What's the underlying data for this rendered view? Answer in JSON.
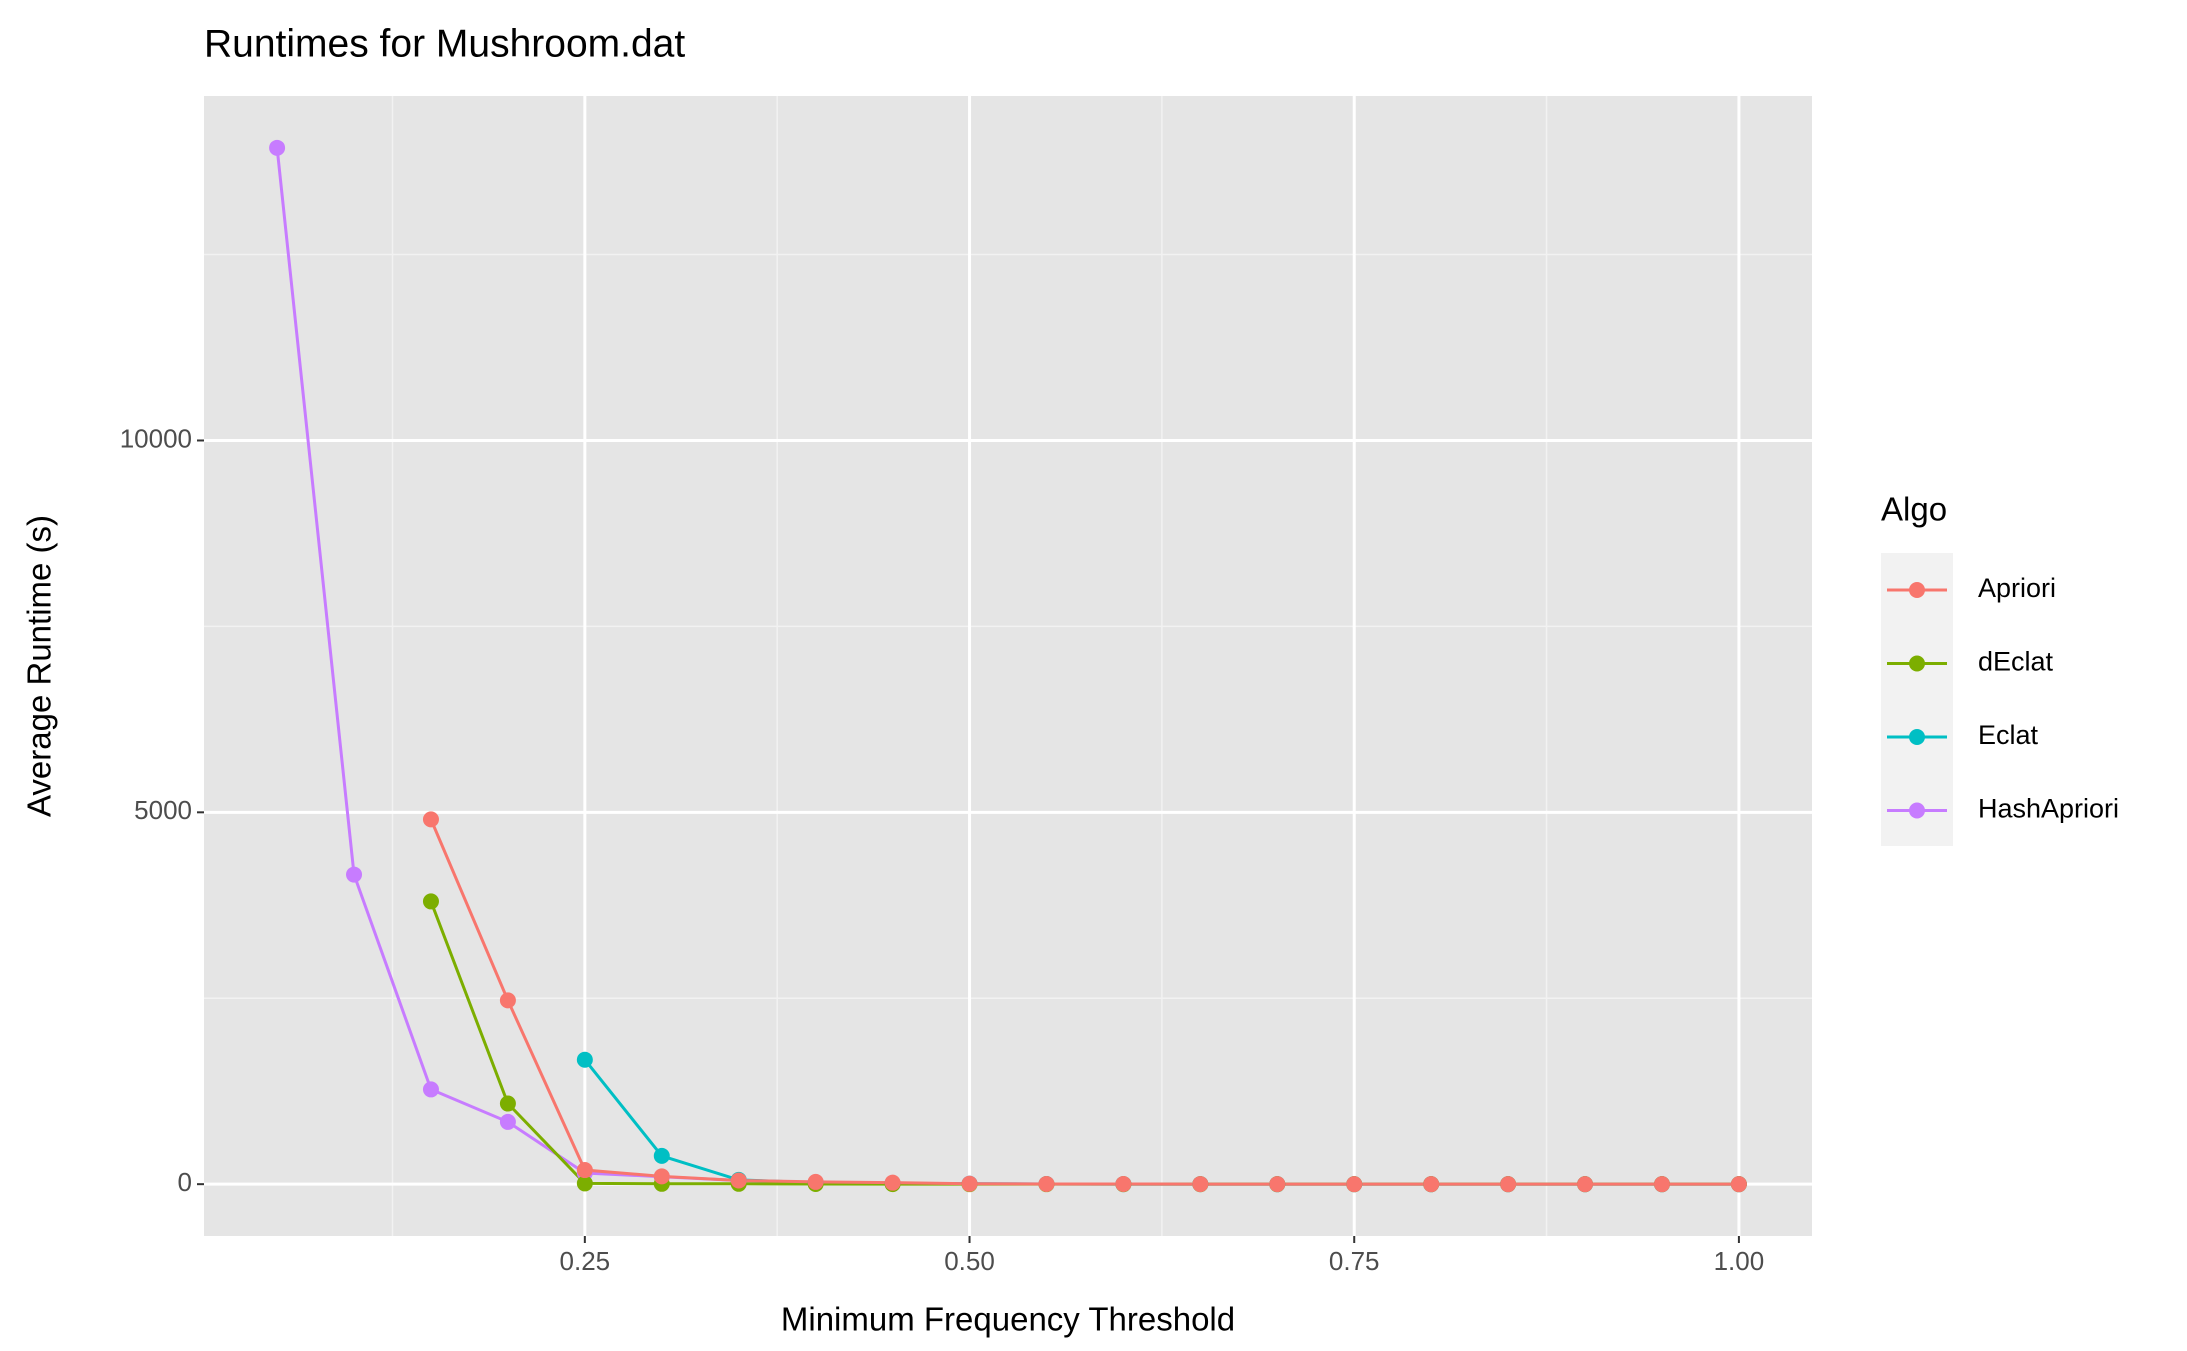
{
  "chart_data": {
    "type": "line",
    "title": "Runtimes for Mushroom.dat",
    "x_label": "Minimum Frequency Threshold",
    "y_label": "Average Runtime (s)",
    "legend_title": "Algo",
    "legend_position": "right",
    "x": [
      0.05,
      0.1,
      0.15,
      0.2,
      0.25,
      0.3,
      0.35,
      0.4,
      0.45,
      0.5,
      0.55,
      0.6,
      0.65,
      0.7,
      0.75,
      0.8,
      0.85,
      0.9,
      0.95,
      1.0
    ],
    "series": [
      {
        "name": "Apriori",
        "color": "#F8766D",
        "values": [
          null,
          null,
          4905,
          2471,
          190,
          105,
          50,
          30,
          20,
          5,
          3,
          2,
          1,
          1,
          0,
          0,
          0,
          0,
          0,
          0
        ]
      },
      {
        "name": "dEclat",
        "color": "#7CAE00",
        "values": [
          null,
          null,
          3802,
          1084,
          10,
          5,
          5,
          2,
          1,
          0,
          0,
          0,
          0,
          0,
          0,
          0,
          0,
          0,
          0,
          0
        ]
      },
      {
        "name": "Eclat",
        "color": "#00BFC4",
        "values": [
          null,
          null,
          null,
          null,
          1673,
          380,
          57,
          20,
          10,
          5,
          2,
          1,
          1,
          0,
          0,
          0,
          0,
          0,
          0,
          0
        ]
      },
      {
        "name": "HashApriori",
        "color": "#C77CFF",
        "values": [
          13935,
          4163,
          1274,
          837,
          150,
          100,
          50,
          20,
          10,
          5,
          2,
          1,
          1,
          0,
          0,
          0,
          0,
          0,
          0,
          0
        ]
      }
    ],
    "xlim": [
      0.0025,
      1.0475
    ],
    "xticks": [
      0.25,
      {
        "value": 0.5,
        "label": "0.50"
      },
      0.75,
      {
        "value": 1.0,
        "label": "1.00"
      }
    ],
    "xminor": [
      0.125,
      0.375,
      0.625,
      0.875
    ],
    "ylim": [
      -697,
      14632
    ],
    "yticks": [
      0,
      5000,
      10000
    ],
    "yminor": [
      2500,
      7500,
      12500
    ],
    "grid": true
  }
}
